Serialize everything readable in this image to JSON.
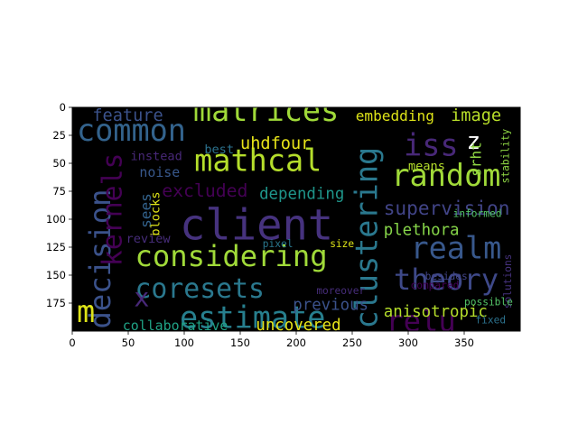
{
  "chart_data": {
    "type": "wordcloud",
    "title": "",
    "xlabel": "",
    "ylabel": "",
    "background": "#000000",
    "colormap": "viridis",
    "xlim": [
      0,
      400
    ],
    "ylim": [
      200,
      0
    ],
    "x_ticks": [
      0,
      50,
      100,
      150,
      200,
      250,
      300,
      350
    ],
    "y_ticks": [
      0,
      25,
      50,
      75,
      100,
      125,
      150,
      175
    ],
    "words": [
      {
        "text": "client",
        "x": 96,
        "y": 118,
        "size": 38,
        "rot": 0,
        "color": "#46327e"
      },
      {
        "text": "matrices",
        "x": 108,
        "y": 12,
        "size": 27,
        "rot": 0,
        "color": "#a0da39"
      },
      {
        "text": "common",
        "x": 4,
        "y": 30,
        "size": 27,
        "rot": 0,
        "color": "#33638d"
      },
      {
        "text": "mathcal",
        "x": 109,
        "y": 57,
        "size": 27,
        "rot": 0,
        "color": "#b5de2b"
      },
      {
        "text": "considering",
        "x": 56,
        "y": 142,
        "size": 26,
        "rot": 0,
        "color": "#a0da39"
      },
      {
        "text": "coresets",
        "x": 56,
        "y": 170,
        "size": 24,
        "rot": 0,
        "color": "#2a788e"
      },
      {
        "text": "estimate",
        "x": 96,
        "y": 197,
        "size": 27,
        "rot": 0,
        "color": "#277f8e"
      },
      {
        "text": "random",
        "x": 285,
        "y": 70,
        "size": 27,
        "rot": 0,
        "color": "#a0da39"
      },
      {
        "text": "realm",
        "x": 302,
        "y": 135,
        "size": 27,
        "rot": 0,
        "color": "#38588c"
      },
      {
        "text": "theory",
        "x": 287,
        "y": 163,
        "size": 26,
        "rot": 0,
        "color": "#3e4989"
      },
      {
        "text": "relu",
        "x": 280,
        "y": 200,
        "size": 26,
        "rot": 0,
        "color": "#440154"
      },
      {
        "text": "iss",
        "x": 296,
        "y": 43,
        "size": 27,
        "rot": 0,
        "color": "#482878"
      },
      {
        "text": "clustering",
        "x": 272,
        "y": 198,
        "size": 27,
        "rot": -90,
        "color": "#2a788e"
      },
      {
        "text": "decision",
        "x": 34,
        "y": 198,
        "size": 26,
        "rot": -90,
        "color": "#3b528b"
      },
      {
        "text": "kernels",
        "x": 44,
        "y": 142,
        "size": 24,
        "rot": -90,
        "color": "#440154"
      },
      {
        "text": "m",
        "x": 4,
        "y": 192,
        "size": 27,
        "rot": 0,
        "color": "#dde318"
      },
      {
        "text": "x",
        "x": 55,
        "y": 178,
        "size": 23,
        "rot": 0,
        "color": "#482878"
      },
      {
        "text": "z",
        "x": 352,
        "y": 37,
        "size": 21,
        "rot": 0,
        "color": "#ffffff"
      },
      {
        "text": "feature",
        "x": 18,
        "y": 12,
        "size": 15,
        "rot": 0,
        "color": "#3b528b"
      },
      {
        "text": "uhdfour",
        "x": 150,
        "y": 37,
        "size": 15,
        "rot": 0,
        "color": "#e7e419"
      },
      {
        "text": "embedding",
        "x": 253,
        "y": 12,
        "size": 13,
        "rot": 0,
        "color": "#dde318"
      },
      {
        "text": "image",
        "x": 338,
        "y": 12,
        "size": 15,
        "rot": 0,
        "color": "#b8de29"
      },
      {
        "text": "excluded",
        "x": 80,
        "y": 80,
        "size": 16,
        "rot": 0,
        "color": "#440154"
      },
      {
        "text": "depending",
        "x": 167,
        "y": 82,
        "size": 14,
        "rot": 0,
        "color": "#1f968b"
      },
      {
        "text": "supervision",
        "x": 278,
        "y": 96,
        "size": 17,
        "rot": 0,
        "color": "#414487"
      },
      {
        "text": "plethora",
        "x": 278,
        "y": 114,
        "size": 14,
        "rot": 0,
        "color": "#86d549"
      },
      {
        "text": "previous",
        "x": 197,
        "y": 181,
        "size": 14,
        "rot": 0,
        "color": "#3b528b"
      },
      {
        "text": "anisotropic",
        "x": 278,
        "y": 187,
        "size": 14,
        "rot": 0,
        "color": "#b5de2b"
      },
      {
        "text": "uncovered",
        "x": 164,
        "y": 199,
        "size": 14,
        "rot": 0,
        "color": "#e7e419"
      },
      {
        "text": "collaborative",
        "x": 45,
        "y": 199,
        "size": 12,
        "rot": 0,
        "color": "#20a386"
      },
      {
        "text": "noise",
        "x": 60,
        "y": 62,
        "size": 12,
        "rot": 0,
        "color": "#38588c"
      },
      {
        "text": "instead",
        "x": 52,
        "y": 47,
        "size": 11,
        "rot": 0,
        "color": "#482878"
      },
      {
        "text": "best",
        "x": 118,
        "y": 41,
        "size": 11,
        "rot": 0,
        "color": "#2c728e"
      },
      {
        "text": "sees",
        "x": 70,
        "y": 108,
        "size": 13,
        "rot": -90,
        "color": "#33638d"
      },
      {
        "text": "blocks",
        "x": 78,
        "y": 115,
        "size": 11,
        "rot": -90,
        "color": "#dde318"
      },
      {
        "text": "review",
        "x": 48,
        "y": 121,
        "size": 11,
        "rot": 0,
        "color": "#472d7b"
      },
      {
        "text": "means",
        "x": 300,
        "y": 56,
        "size": 11,
        "rot": 0,
        "color": "#b5de2b"
      },
      {
        "text": "srht",
        "x": 365,
        "y": 62,
        "size": 13,
        "rot": -90,
        "color": "#8fd744"
      },
      {
        "text": "stability",
        "x": 390,
        "y": 68,
        "size": 9,
        "rot": -90,
        "color": "#8fd744"
      },
      {
        "text": "informed",
        "x": 340,
        "y": 98,
        "size": 9,
        "rot": 0,
        "color": "#54c568"
      },
      {
        "text": "pixel",
        "x": 170,
        "y": 125,
        "size": 9,
        "rot": 0,
        "color": "#2a788e"
      },
      {
        "text": "size",
        "x": 230,
        "y": 125,
        "size": 9,
        "rot": 0,
        "color": "#dde318"
      },
      {
        "text": "besides",
        "x": 315,
        "y": 154,
        "size": 9,
        "rot": 0,
        "color": "#414487"
      },
      {
        "text": "compared",
        "x": 302,
        "y": 162,
        "size": 9,
        "rot": 0,
        "color": "#440154"
      },
      {
        "text": "moreover",
        "x": 218,
        "y": 167,
        "size": 9,
        "rot": 0,
        "color": "#472d7b"
      },
      {
        "text": "solutions",
        "x": 392,
        "y": 180,
        "size": 9,
        "rot": -90,
        "color": "#46327e"
      },
      {
        "text": "possible",
        "x": 350,
        "y": 177,
        "size": 9,
        "rot": 0,
        "color": "#54c568"
      },
      {
        "text": "fixed",
        "x": 360,
        "y": 193,
        "size": 9,
        "rot": 0,
        "color": "#2c728e"
      }
    ]
  }
}
